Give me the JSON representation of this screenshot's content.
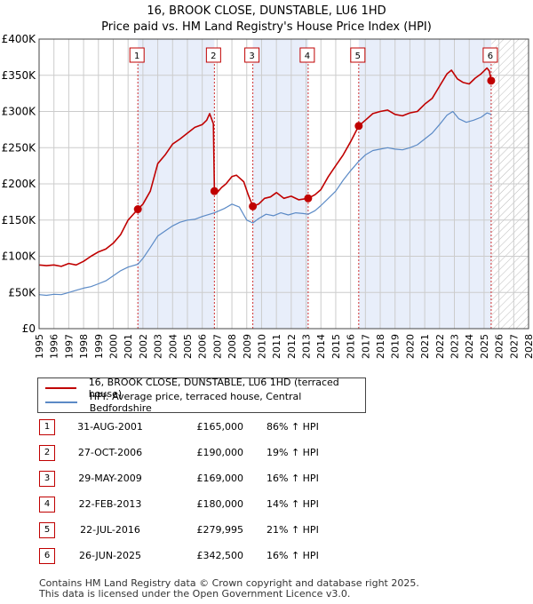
{
  "chart_data": {
    "type": "line",
    "title": "16, BROOK CLOSE, DUNSTABLE, LU6 1HD",
    "subtitle": "Price paid vs. HM Land Registry's House Price Index (HPI)",
    "xlim": [
      1995,
      2028
    ],
    "ylim": [
      0,
      400000
    ],
    "y_ticks": [
      0,
      50000,
      100000,
      150000,
      200000,
      250000,
      300000,
      350000,
      400000
    ],
    "y_tick_labels": [
      "£0",
      "£50K",
      "£100K",
      "£150K",
      "£200K",
      "£250K",
      "£300K",
      "£350K",
      "£400K"
    ],
    "x_ticks": [
      1995,
      1996,
      1997,
      1998,
      1999,
      2000,
      2001,
      2002,
      2003,
      2004,
      2005,
      2006,
      2007,
      2008,
      2009,
      2010,
      2011,
      2012,
      2013,
      2014,
      2015,
      2016,
      2017,
      2018,
      2019,
      2020,
      2021,
      2022,
      2023,
      2024,
      2025,
      2026,
      2027,
      2028
    ],
    "x_tick_labels": [
      "1995",
      "1996",
      "1997",
      "1998",
      "1999",
      "2000",
      "2001",
      "2002",
      "2003",
      "2004",
      "2005",
      "2006",
      "2007",
      "2008",
      "2009",
      "2010",
      "2011",
      "2012",
      "2013",
      "2014",
      "2015",
      "2016",
      "2017",
      "2018",
      "2019",
      "2020",
      "2021",
      "2022",
      "2023",
      "2024",
      "2025",
      "2026",
      "2027",
      "2028"
    ],
    "grid": true,
    "shaded_periods": [
      [
        2001.66,
        2006.82
      ],
      [
        2009.41,
        2013.14
      ],
      [
        2016.55,
        2025.48
      ]
    ],
    "future_hatch_from": 2025.5,
    "series": [
      {
        "name": "16, BROOK CLOSE, DUNSTABLE, LU6 1HD (terraced house)",
        "color": "#c00000",
        "points": [
          [
            1995.0,
            88000
          ],
          [
            1995.5,
            87000
          ],
          [
            1996.0,
            88000
          ],
          [
            1996.5,
            86000
          ],
          [
            1997.0,
            90000
          ],
          [
            1997.5,
            88000
          ],
          [
            1998.0,
            93000
          ],
          [
            1998.5,
            100000
          ],
          [
            1999.0,
            106000
          ],
          [
            1999.5,
            110000
          ],
          [
            2000.0,
            118000
          ],
          [
            2000.5,
            130000
          ],
          [
            2001.0,
            150000
          ],
          [
            2001.66,
            165000
          ],
          [
            2002.0,
            172000
          ],
          [
            2002.5,
            190000
          ],
          [
            2003.0,
            228000
          ],
          [
            2003.5,
            240000
          ],
          [
            2004.0,
            255000
          ],
          [
            2004.5,
            262000
          ],
          [
            2005.0,
            270000
          ],
          [
            2005.5,
            278000
          ],
          [
            2006.0,
            282000
          ],
          [
            2006.3,
            288000
          ],
          [
            2006.5,
            297000
          ],
          [
            2006.75,
            283000
          ],
          [
            2006.82,
            190000
          ],
          [
            2007.0,
            188000
          ],
          [
            2007.3,
            195000
          ],
          [
            2007.6,
            200000
          ],
          [
            2008.0,
            210000
          ],
          [
            2008.3,
            212000
          ],
          [
            2008.8,
            203000
          ],
          [
            2009.1,
            185000
          ],
          [
            2009.41,
            169000
          ],
          [
            2009.8,
            172000
          ],
          [
            2010.2,
            180000
          ],
          [
            2010.6,
            182000
          ],
          [
            2011.0,
            188000
          ],
          [
            2011.5,
            180000
          ],
          [
            2012.0,
            183000
          ],
          [
            2012.5,
            178000
          ],
          [
            2013.14,
            180000
          ],
          [
            2013.6,
            185000
          ],
          [
            2014.0,
            192000
          ],
          [
            2014.5,
            210000
          ],
          [
            2015.0,
            225000
          ],
          [
            2015.5,
            240000
          ],
          [
            2016.0,
            258000
          ],
          [
            2016.55,
            279995
          ],
          [
            2017.0,
            288000
          ],
          [
            2017.5,
            297000
          ],
          [
            2018.0,
            300000
          ],
          [
            2018.5,
            302000
          ],
          [
            2019.0,
            296000
          ],
          [
            2019.5,
            294000
          ],
          [
            2020.0,
            298000
          ],
          [
            2020.5,
            300000
          ],
          [
            2021.0,
            310000
          ],
          [
            2021.5,
            318000
          ],
          [
            2022.0,
            335000
          ],
          [
            2022.5,
            352000
          ],
          [
            2022.8,
            357000
          ],
          [
            2023.2,
            345000
          ],
          [
            2023.6,
            340000
          ],
          [
            2024.0,
            338000
          ],
          [
            2024.4,
            346000
          ],
          [
            2024.8,
            352000
          ],
          [
            2025.2,
            360000
          ],
          [
            2025.35,
            356000
          ],
          [
            2025.48,
            342500
          ]
        ]
      },
      {
        "name": "HPI: Average price, terraced house, Central Bedfordshire",
        "color": "#5b8ac6",
        "points": [
          [
            1995.0,
            47000
          ],
          [
            1995.5,
            46000
          ],
          [
            1996.0,
            47500
          ],
          [
            1996.5,
            47000
          ],
          [
            1997.0,
            50000
          ],
          [
            1997.5,
            53000
          ],
          [
            1998.0,
            56000
          ],
          [
            1998.5,
            58000
          ],
          [
            1999.0,
            62000
          ],
          [
            1999.5,
            66000
          ],
          [
            2000.0,
            73000
          ],
          [
            2000.5,
            80000
          ],
          [
            2001.0,
            85000
          ],
          [
            2001.66,
            89000
          ],
          [
            2002.0,
            97000
          ],
          [
            2002.5,
            112000
          ],
          [
            2003.0,
            128000
          ],
          [
            2003.5,
            135000
          ],
          [
            2004.0,
            142000
          ],
          [
            2004.5,
            147000
          ],
          [
            2005.0,
            150000
          ],
          [
            2005.5,
            151000
          ],
          [
            2006.0,
            155000
          ],
          [
            2006.5,
            158000
          ],
          [
            2006.82,
            160000
          ],
          [
            2007.5,
            166000
          ],
          [
            2008.0,
            172000
          ],
          [
            2008.5,
            168000
          ],
          [
            2009.0,
            150000
          ],
          [
            2009.41,
            146000
          ],
          [
            2009.8,
            152000
          ],
          [
            2010.3,
            158000
          ],
          [
            2010.8,
            156000
          ],
          [
            2011.3,
            160000
          ],
          [
            2011.8,
            157000
          ],
          [
            2012.3,
            160000
          ],
          [
            2012.8,
            159000
          ],
          [
            2013.14,
            158000
          ],
          [
            2013.6,
            163000
          ],
          [
            2014.0,
            170000
          ],
          [
            2014.5,
            180000
          ],
          [
            2015.0,
            190000
          ],
          [
            2015.5,
            205000
          ],
          [
            2016.0,
            218000
          ],
          [
            2016.55,
            231000
          ],
          [
            2017.0,
            240000
          ],
          [
            2017.5,
            246000
          ],
          [
            2018.0,
            248000
          ],
          [
            2018.5,
            250000
          ],
          [
            2019.0,
            248000
          ],
          [
            2019.5,
            247000
          ],
          [
            2020.0,
            250000
          ],
          [
            2020.5,
            254000
          ],
          [
            2021.0,
            262000
          ],
          [
            2021.5,
            270000
          ],
          [
            2022.0,
            282000
          ],
          [
            2022.5,
            295000
          ],
          [
            2022.9,
            300000
          ],
          [
            2023.3,
            290000
          ],
          [
            2023.8,
            285000
          ],
          [
            2024.3,
            288000
          ],
          [
            2024.8,
            292000
          ],
          [
            2025.2,
            298000
          ],
          [
            2025.48,
            296000
          ]
        ]
      }
    ],
    "sales": [
      {
        "n": "1",
        "x": 2001.66,
        "y": 165000
      },
      {
        "n": "2",
        "x": 2006.82,
        "y": 190000
      },
      {
        "n": "3",
        "x": 2009.41,
        "y": 169000
      },
      {
        "n": "4",
        "x": 2013.14,
        "y": 180000
      },
      {
        "n": "5",
        "x": 2016.55,
        "y": 279995
      },
      {
        "n": "6",
        "x": 2025.48,
        "y": 342500
      }
    ]
  },
  "legend": {
    "property_label": "16, BROOK CLOSE, DUNSTABLE, LU6 1HD (terraced house)",
    "hpi_label": "HPI: Average price, terraced house, Central Bedfordshire"
  },
  "sales_table": [
    {
      "n": "1",
      "date": "31-AUG-2001",
      "price": "£165,000",
      "hpi": "86% ↑ HPI"
    },
    {
      "n": "2",
      "date": "27-OCT-2006",
      "price": "£190,000",
      "hpi": "19% ↑ HPI"
    },
    {
      "n": "3",
      "date": "29-MAY-2009",
      "price": "£169,000",
      "hpi": "16% ↑ HPI"
    },
    {
      "n": "4",
      "date": "22-FEB-2013",
      "price": "£180,000",
      "hpi": "14% ↑ HPI"
    },
    {
      "n": "5",
      "date": "22-JUL-2016",
      "price": "£279,995",
      "hpi": "21% ↑ HPI"
    },
    {
      "n": "6",
      "date": "26-JUN-2025",
      "price": "£342,500",
      "hpi": "16% ↑ HPI"
    }
  ],
  "footer": {
    "line1": "Contains HM Land Registry data © Crown copyright and database right 2025.",
    "line2": "This data is licensed under the Open Government Licence v3.0."
  },
  "colors": {
    "property": "#c00000",
    "hpi": "#5b8ac6",
    "shade": "#e8eefa",
    "grid": "#cccccc"
  }
}
